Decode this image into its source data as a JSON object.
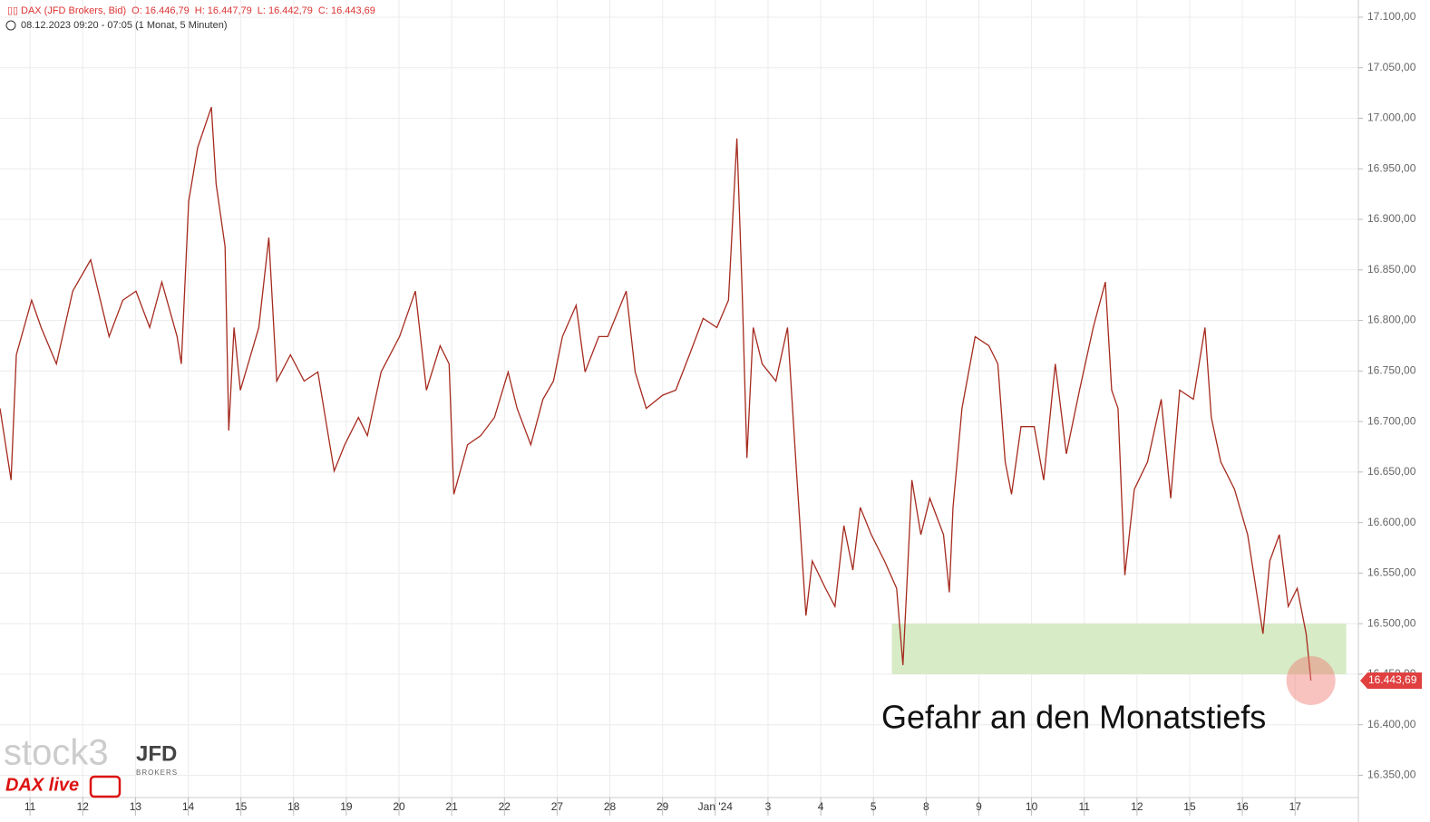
{
  "chart_data": {
    "type": "line",
    "title": "DAX (JFD Brokers, Bid)",
    "ohlc": [
      "O: 16.446,79",
      "H: 16.447,79",
      "L: 16.442,79",
      "C: 16.443,69"
    ],
    "subtitle": "08.12.2023 09:20 - 07:05  (1 Monat, 5 Minuten)",
    "annotation": "Gefahr an den Monatstiefs",
    "logos": [
      "stock3",
      "JFD",
      "BROKERS",
      "DAX live"
    ],
    "zone": {
      "from": 16450,
      "to": 16500,
      "x": [
        16.35,
        24.97
      ],
      "color": "#d6ebc6"
    },
    "xlim": [
      -0.57,
      25.2
    ],
    "xticks": [
      {
        "value": 0,
        "label": "11"
      },
      {
        "value": 1,
        "label": "12"
      },
      {
        "value": 2,
        "label": "13"
      },
      {
        "value": 3,
        "label": "14"
      },
      {
        "value": 4,
        "label": "15"
      },
      {
        "value": 5,
        "label": "18"
      },
      {
        "value": 6,
        "label": "19"
      },
      {
        "value": 7,
        "label": "20"
      },
      {
        "value": 8,
        "label": "21"
      },
      {
        "value": 9,
        "label": "22"
      },
      {
        "value": 10,
        "label": "27"
      },
      {
        "value": 11,
        "label": "28"
      },
      {
        "value": 12,
        "label": "29"
      },
      {
        "value": 13,
        "label": "Jan '24"
      },
      {
        "value": 14,
        "label": "3"
      },
      {
        "value": 15,
        "label": "4"
      },
      {
        "value": 16,
        "label": "5"
      },
      {
        "value": 17,
        "label": "8"
      },
      {
        "value": 18,
        "label": "9"
      },
      {
        "value": 19,
        "label": "10"
      },
      {
        "value": 20,
        "label": "11"
      },
      {
        "value": 21,
        "label": "12"
      },
      {
        "value": 22,
        "label": "15"
      },
      {
        "value": 23,
        "label": "16"
      },
      {
        "value": 24,
        "label": "17"
      }
    ],
    "ylim": [
      16328,
      17117
    ],
    "yticks": [
      {
        "value": 16350,
        "label": "16.350,00"
      },
      {
        "value": 16400,
        "label": "16.400,00"
      },
      {
        "value": 16450,
        "label": "16.450,00"
      },
      {
        "value": 16500,
        "label": "16.500,00"
      },
      {
        "value": 16550,
        "label": "16.550,00"
      },
      {
        "value": 16600,
        "label": "16.600,00"
      },
      {
        "value": 16650,
        "label": "16.650,00"
      },
      {
        "value": 16700,
        "label": "16.700,00"
      },
      {
        "value": 16750,
        "label": "16.750,00"
      },
      {
        "value": 16800,
        "label": "16.800,00"
      },
      {
        "value": 16850,
        "label": "16.850,00"
      },
      {
        "value": 16900,
        "label": "16.900,00"
      },
      {
        "value": 16950,
        "label": "16.950,00"
      },
      {
        "value": 17000,
        "label": "17.000,00"
      },
      {
        "value": 17050,
        "label": "17.050,00"
      },
      {
        "value": 17100,
        "label": "17.100,00"
      }
    ],
    "grid": true,
    "series": [
      {
        "name": "DAX",
        "color": "#a52a1e",
        "x": [
          -0.57,
          -0.36,
          -0.26,
          0.03,
          0.21,
          0.5,
          0.81,
          1.15,
          1.5,
          1.76,
          2.01,
          2.27,
          2.5,
          2.79,
          2.87,
          3.01,
          3.18,
          3.44,
          3.53,
          3.7,
          3.77,
          3.87,
          3.99,
          4.34,
          4.53,
          4.68,
          4.94,
          5.2,
          5.46,
          5.63,
          5.77,
          5.97,
          6.23,
          6.4,
          6.66,
          7.01,
          7.31,
          7.52,
          7.78,
          7.95,
          8.04,
          8.3,
          8.55,
          8.81,
          9.07,
          9.24,
          9.5,
          9.73,
          9.93,
          10.1,
          10.36,
          10.53,
          10.79,
          10.96,
          11.31,
          11.48,
          11.69,
          12.0,
          12.25,
          12.51,
          12.77,
          13.03,
          13.25,
          13.41,
          13.51,
          13.6,
          13.72,
          13.89,
          14.15,
          14.37,
          14.54,
          14.72,
          14.84,
          15.09,
          15.27,
          15.44,
          15.61,
          15.75,
          15.96,
          16.21,
          16.44,
          16.56,
          16.64,
          16.73,
          16.9,
          17.07,
          17.33,
          17.44,
          17.51,
          17.68,
          17.93,
          18.19,
          18.36,
          18.5,
          18.62,
          18.8,
          19.05,
          19.23,
          19.45,
          19.66,
          19.91,
          20.17,
          20.4,
          20.52,
          20.64,
          20.77,
          20.95,
          21.2,
          21.46,
          21.64,
          21.81,
          22.07,
          22.29,
          22.41,
          22.59,
          22.85,
          23.1,
          23.39,
          23.52,
          23.7,
          23.87,
          24.04,
          24.21,
          24.3
        ],
        "values": [
          16713,
          16642,
          16766,
          16820,
          16793,
          16757,
          16829,
          16860,
          16784,
          16820,
          16829,
          16793,
          16838,
          16784,
          16757,
          16918,
          16971,
          17011,
          16935,
          16873,
          16691,
          16793,
          16731,
          16793,
          16882,
          16740,
          16766,
          16740,
          16749,
          16695,
          16651,
          16677,
          16704,
          16686,
          16749,
          16784,
          16829,
          16731,
          16775,
          16757,
          16628,
          16677,
          16686,
          16704,
          16749,
          16713,
          16677,
          16722,
          16740,
          16784,
          16815,
          16749,
          16784,
          16784,
          16829,
          16749,
          16713,
          16726,
          16731,
          16766,
          16802,
          16793,
          16820,
          16980,
          16829,
          16664,
          16793,
          16757,
          16740,
          16793,
          16651,
          16508,
          16562,
          16535,
          16517,
          16597,
          16553,
          16615,
          16588,
          16562,
          16535,
          16459,
          16544,
          16642,
          16588,
          16624,
          16588,
          16531,
          16615,
          16713,
          16784,
          16775,
          16757,
          16660,
          16628,
          16695,
          16695,
          16642,
          16757,
          16668,
          16731,
          16793,
          16838,
          16731,
          16713,
          16548,
          16633,
          16660,
          16722,
          16624,
          16731,
          16722,
          16793,
          16704,
          16660,
          16633,
          16588,
          16490,
          16562,
          16588,
          16517,
          16535,
          16490,
          16443.69
        ],
        "last_label": "16.443,69"
      }
    ]
  }
}
